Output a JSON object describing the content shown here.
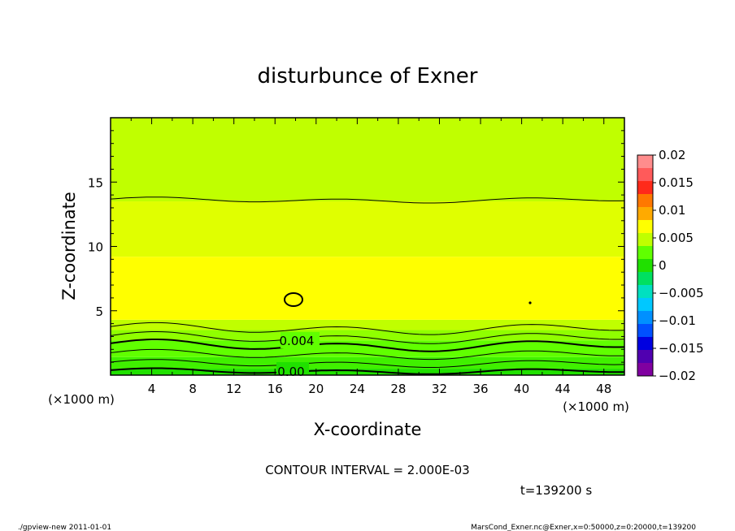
{
  "chart_data": {
    "type": "heatmap",
    "title": "disturbunce of Exner",
    "xlabel": "X-coordinate",
    "ylabel": "Z-coordinate",
    "xunit": "(×1000 m)",
    "yunit": "(×1000 m)",
    "xlim": [
      0,
      50
    ],
    "ylim": [
      0,
      20
    ],
    "xticks": [
      4,
      8,
      12,
      16,
      20,
      24,
      28,
      32,
      36,
      40,
      44,
      48
    ],
    "yticks": [
      5,
      10,
      15
    ],
    "colorbar": {
      "ticks": [
        "0.02",
        "0.015",
        "0.01",
        "0.005",
        "0",
        "−0.005",
        "−0.01",
        "−0.015",
        "−0.02"
      ],
      "colors": [
        "#ff8c8c",
        "#ff5a5a",
        "#ff2a1a",
        "#ff7800",
        "#ffaa00",
        "#ffff00",
        "#c0ff00",
        "#60ff00",
        "#20e000",
        "#00e060",
        "#00e0c0",
        "#00c8ff",
        "#0090ff",
        "#0050ff",
        "#0000e0",
        "#5000b0",
        "#8000a0"
      ]
    },
    "bands": [
      {
        "z_bottom": 0.0,
        "z_top": 0.5,
        "color": "#20e000"
      },
      {
        "z_bottom": 0.5,
        "z_top": 1.4,
        "color": "#40f000"
      },
      {
        "z_bottom": 1.4,
        "z_top": 2.7,
        "color": "#60ff00"
      },
      {
        "z_bottom": 2.7,
        "z_top": 3.5,
        "color": "#90ff00"
      },
      {
        "z_bottom": 3.5,
        "z_top": 4.3,
        "color": "#c0ff00"
      },
      {
        "z_bottom": 4.3,
        "z_top": 9.2,
        "color": "#ffff00"
      },
      {
        "z_bottom": 9.2,
        "z_top": 13.5,
        "color": "#e0ff00"
      },
      {
        "z_bottom": 13.5,
        "z_top": 20.0,
        "color": "#c0ff00"
      }
    ],
    "contour_lines": [
      {
        "z": 0.3,
        "amp": 0.15,
        "bold": true
      },
      {
        "z": 0.9,
        "amp": 0.2,
        "bold": false
      },
      {
        "z": 1.6,
        "amp": 0.25,
        "bold": false
      },
      {
        "z": 2.3,
        "amp": 0.3,
        "bold": true
      },
      {
        "z": 2.9,
        "amp": 0.3,
        "bold": false
      },
      {
        "z": 3.6,
        "amp": 0.3,
        "bold": false
      },
      {
        "z": 13.6,
        "amp": 0.15,
        "bold": false
      }
    ],
    "contour_labels": [
      "0.004",
      "0.00"
    ],
    "contour_interval": "CONTOUR INTERVAL = 2.000E-03",
    "time": "t=139200 s"
  },
  "footer": {
    "left": "./gpview-new   2011-01-01",
    "right": "MarsCond_Exner.nc@Exner,x=0:50000,z=0:20000,t=139200"
  }
}
